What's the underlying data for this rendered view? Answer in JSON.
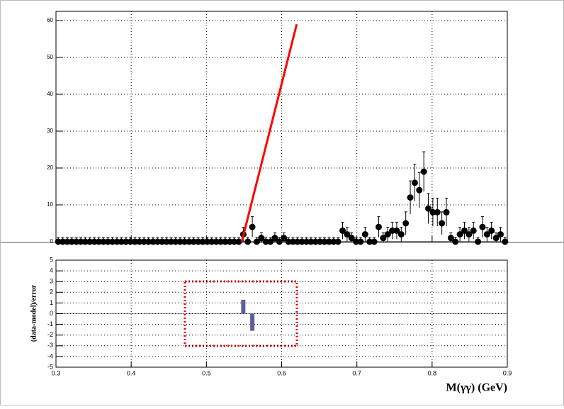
{
  "chart_data": [
    {
      "type": "errorbar",
      "x": [
        0.303,
        0.309,
        0.315,
        0.321,
        0.327,
        0.333,
        0.339,
        0.345,
        0.351,
        0.357,
        0.363,
        0.369,
        0.375,
        0.381,
        0.387,
        0.393,
        0.399,
        0.405,
        0.411,
        0.417,
        0.423,
        0.429,
        0.435,
        0.441,
        0.447,
        0.453,
        0.459,
        0.465,
        0.471,
        0.477,
        0.483,
        0.489,
        0.495,
        0.501,
        0.507,
        0.513,
        0.519,
        0.525,
        0.531,
        0.537,
        0.543,
        0.549,
        0.555,
        0.561,
        0.567,
        0.573,
        0.579,
        0.585,
        0.591,
        0.597,
        0.603,
        0.609,
        0.615,
        0.621,
        0.627,
        0.633,
        0.639,
        0.645,
        0.651,
        0.657,
        0.663,
        0.669,
        0.675,
        0.681,
        0.687,
        0.693,
        0.699,
        0.705,
        0.711,
        0.717,
        0.723,
        0.729,
        0.735,
        0.741,
        0.747,
        0.753,
        0.759,
        0.765,
        0.771,
        0.777,
        0.783,
        0.789,
        0.795,
        0.801,
        0.807,
        0.813,
        0.819,
        0.825,
        0.831,
        0.837,
        0.843,
        0.849,
        0.855,
        0.861,
        0.867,
        0.873,
        0.879,
        0.885,
        0.891,
        0.897
      ],
      "values": [
        0,
        0,
        0,
        0,
        0,
        0,
        0,
        0,
        0,
        0,
        0,
        0,
        0,
        0,
        0,
        0,
        0,
        0,
        0,
        0,
        0,
        0,
        0,
        0,
        0,
        0,
        0,
        0,
        0,
        0,
        0,
        0,
        0,
        0,
        0,
        0,
        0,
        0,
        0,
        0,
        0,
        2,
        0,
        4,
        0,
        1,
        0,
        0,
        1,
        0,
        1,
        0,
        0,
        0,
        0,
        0,
        0,
        0,
        0,
        0,
        0,
        0,
        0,
        3,
        2,
        1,
        0,
        0,
        2,
        0,
        0,
        4,
        1,
        2,
        3,
        3,
        2,
        5,
        12,
        16,
        14,
        19,
        9,
        8,
        8,
        5,
        8,
        1,
        0,
        2,
        3,
        2,
        3,
        0,
        4,
        2,
        3,
        1,
        2,
        0
      ],
      "errors": [
        1.15,
        1.15,
        1.15,
        1.15,
        1.15,
        1.15,
        1.15,
        1.15,
        1.15,
        1.15,
        1.15,
        1.15,
        1.15,
        1.15,
        1.15,
        1.15,
        1.15,
        1.15,
        1.15,
        1.15,
        1.15,
        1.15,
        1.15,
        1.15,
        1.15,
        1.15,
        1.15,
        1.15,
        1.15,
        1.15,
        1.15,
        1.15,
        1.15,
        1.15,
        1.15,
        1.15,
        1.15,
        1.15,
        1.15,
        1.15,
        1.15,
        1.9,
        1.15,
        2.8,
        1.15,
        1.4,
        1.15,
        1.15,
        1.4,
        1.15,
        1.4,
        1.15,
        1.15,
        1.15,
        1.15,
        1.15,
        1.15,
        1.15,
        1.15,
        1.15,
        1.15,
        1.15,
        1.15,
        2.3,
        1.9,
        1.4,
        1.15,
        1.15,
        1.9,
        1.15,
        1.15,
        2.8,
        1.4,
        1.9,
        2.3,
        2.3,
        1.9,
        3.1,
        4.5,
        5.0,
        4.8,
        5.4,
        4.1,
        3.8,
        3.8,
        3.1,
        3.8,
        1.4,
        1.15,
        1.9,
        2.3,
        1.9,
        2.3,
        1.15,
        2.8,
        1.9,
        2.3,
        1.4,
        1.9,
        1.15
      ],
      "color": "#000000",
      "fit": {
        "x": [
          0.547,
          0.62
        ],
        "values": [
          0,
          59
        ],
        "color": "#ff0000"
      },
      "xlim": [
        0.3,
        0.9
      ],
      "xticks": [
        0.3,
        0.4,
        0.5,
        0.6,
        0.7,
        0.8,
        0.9
      ],
      "ylim": [
        0,
        62.5
      ],
      "yticks": [
        0,
        10,
        20,
        30,
        40,
        50,
        60
      ],
      "grid": true
    },
    {
      "type": "bar",
      "x": [
        0.549,
        0.561
      ],
      "values": [
        1.3,
        -1.6
      ],
      "color": "#5c5f97",
      "xlabel": "M(γγ) (GeV)",
      "ylabel": "(data-model)/error",
      "xlim": [
        0.3,
        0.9
      ],
      "xticks": [
        0.3,
        0.4,
        0.5,
        0.6,
        0.7,
        0.8,
        0.9
      ],
      "ylim": [
        -5,
        5
      ],
      "yticks": [
        -5,
        -4,
        -3,
        -2,
        -1,
        0,
        1,
        2,
        3,
        4,
        5
      ],
      "grid": true
    }
  ]
}
